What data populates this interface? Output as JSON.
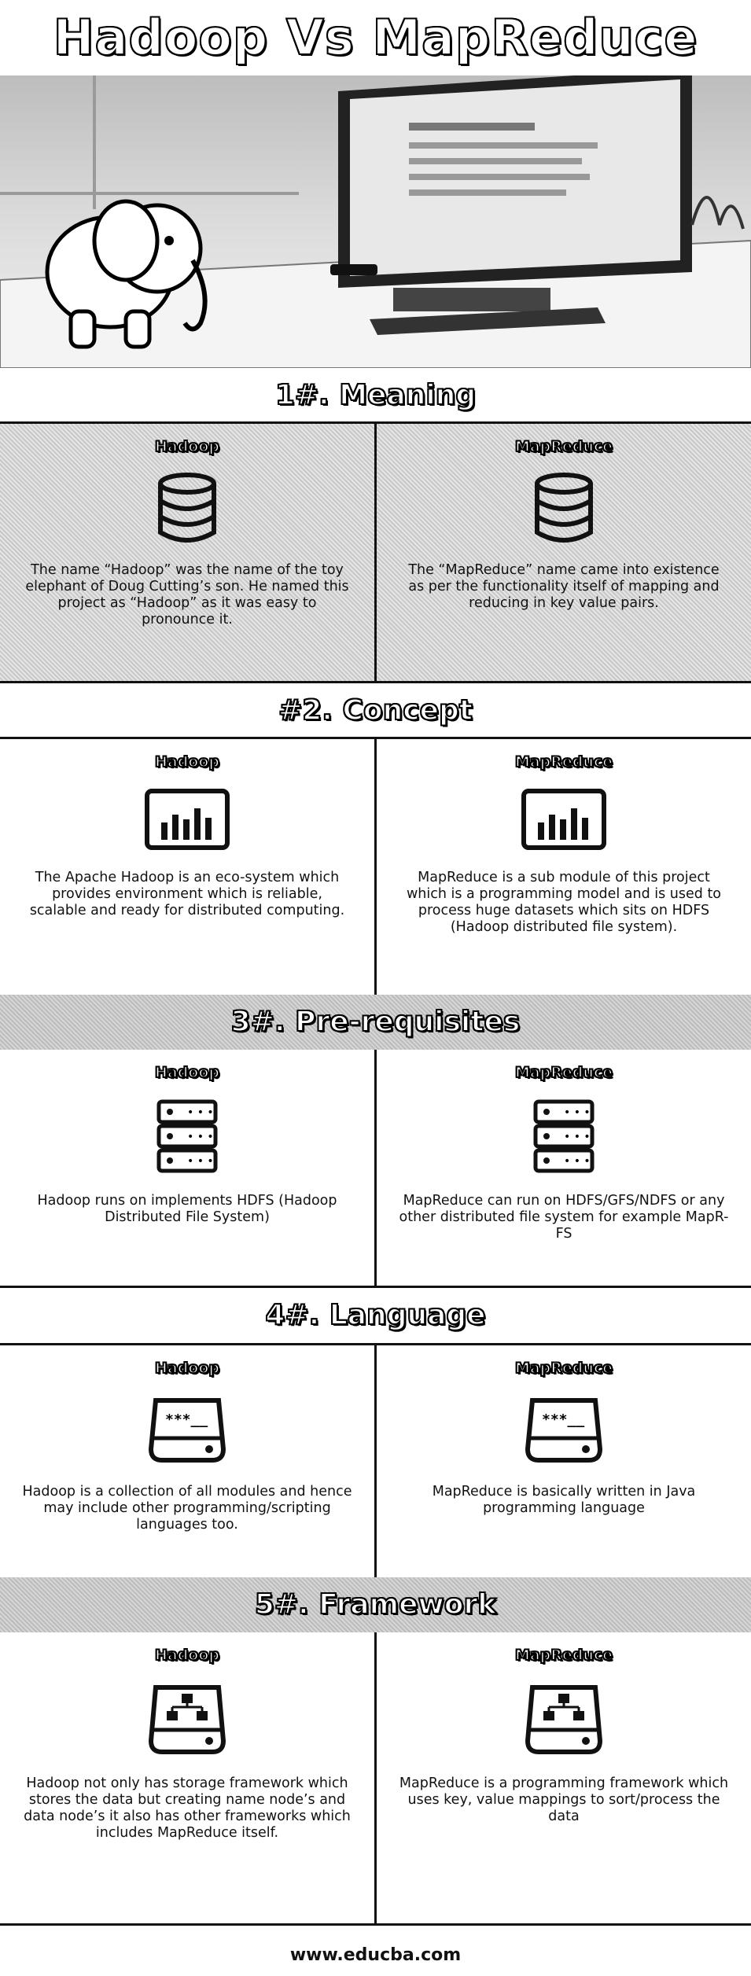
{
  "title": "Hadoop Vs MapReduce",
  "sections": [
    {
      "heading": "1#. Meaning",
      "left": {
        "name": "Hadoop",
        "icon": "database-icon",
        "text": "The name “Hadoop” was the name of the toy elephant of Doug Cutting’s son. He named this project as “Hadoop” as it was easy to pronounce it."
      },
      "right": {
        "name": "MapReduce",
        "icon": "database-icon",
        "text": "The “MapReduce” name came into existence as per the functionality itself of mapping and reducing in key value pairs."
      }
    },
    {
      "heading": "#2. Concept",
      "left": {
        "name": "Hadoop",
        "icon": "bar-chart-monitor-icon",
        "text": "The Apache Hadoop is an eco-system which provides environment which is reliable, scalable and ready for distributed computing."
      },
      "right": {
        "name": "MapReduce",
        "icon": "bar-chart-monitor-icon",
        "text": "MapReduce is a sub module of this project which is a programming model and is used to process huge datasets which sits on HDFS (Hadoop distributed file system)."
      }
    },
    {
      "heading": "3#. Pre-requisites",
      "left": {
        "name": "Hadoop",
        "icon": "server-rack-icon",
        "text": "Hadoop runs on implements HDFS (Hadoop Distributed File System)"
      },
      "right": {
        "name": "MapReduce",
        "icon": "server-rack-icon",
        "text": "MapReduce can run on HDFS/GFS/NDFS or any other distributed file system for example MapR-FS"
      }
    },
    {
      "heading": "4#. Language",
      "left": {
        "name": "Hadoop",
        "icon": "password-drive-icon",
        "text": "Hadoop is a collection of all modules and hence may include other programming/scripting languages too."
      },
      "right": {
        "name": "MapReduce",
        "icon": "password-drive-icon",
        "text": "MapReduce is basically written in Java programming language"
      }
    },
    {
      "heading": "5#. Framework",
      "left": {
        "name": "Hadoop",
        "icon": "network-drive-icon",
        "text": "Hadoop not only has storage framework which stores the data but creating name node’s and data node’s it also has other frameworks which includes MapReduce itself."
      },
      "right": {
        "name": "MapReduce",
        "icon": "network-drive-icon",
        "text": "MapReduce is a programming framework which uses key, value mappings to sort/process the data"
      }
    }
  ],
  "footer": "www.educba.com"
}
